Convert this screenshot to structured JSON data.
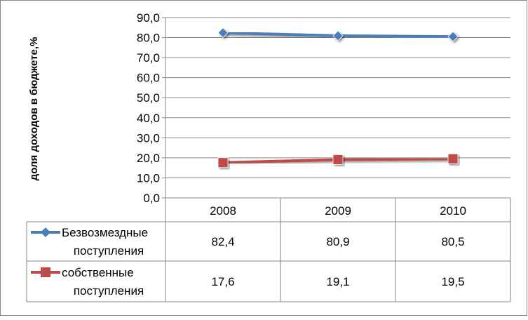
{
  "chart_data": {
    "type": "line",
    "title": "",
    "xlabel": "",
    "ylabel": "доля доходов в бюджете,%",
    "categories": [
      "2008",
      "2009",
      "2010"
    ],
    "ylim": [
      0,
      90
    ],
    "yticks": [
      "0,0",
      "10,0",
      "20,0",
      "30,0",
      "40,0",
      "50,0",
      "60,0",
      "70,0",
      "80,0",
      "90,0"
    ],
    "grid": true,
    "legend": "data-table",
    "series": [
      {
        "name_lines": [
          "Безвозмездные",
          "поступления"
        ],
        "values": [
          82.4,
          80.9,
          80.5
        ],
        "labels": [
          "82,4",
          "80,9",
          "80,5"
        ],
        "color": "#4a7ebb",
        "marker": "diamond"
      },
      {
        "name_lines": [
          "собственные",
          "поступления"
        ],
        "values": [
          17.6,
          19.1,
          19.5
        ],
        "labels": [
          "17,6",
          "19,1",
          "19,5"
        ],
        "color": "#be4b48",
        "marker": "square"
      }
    ]
  }
}
